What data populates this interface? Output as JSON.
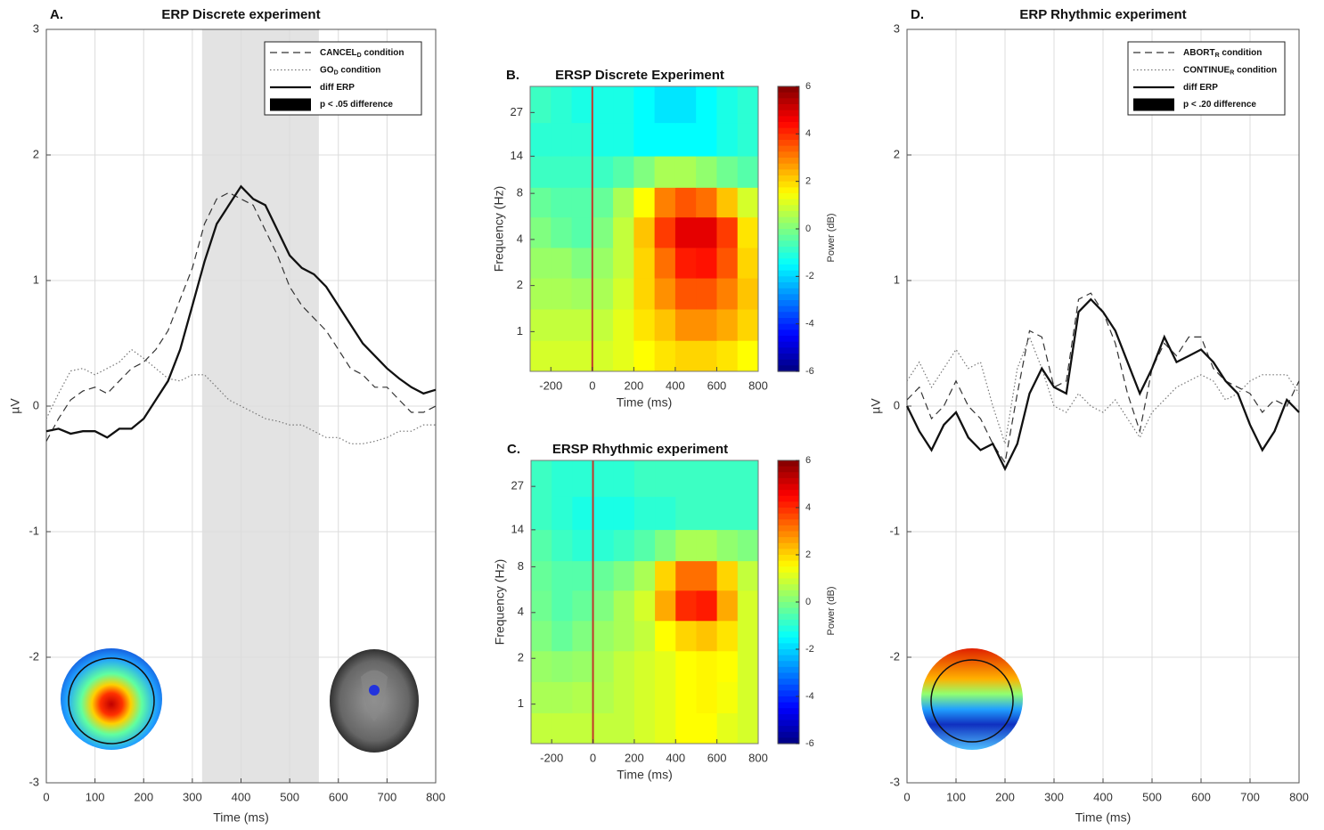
{
  "chart_data": [
    {
      "type": "line",
      "panel": "A.",
      "title": "ERP Discrete experiment",
      "xlabel": "Time (ms)",
      "ylabel": "µV",
      "xlim": [
        0,
        800
      ],
      "xticks": [
        0,
        100,
        200,
        300,
        400,
        500,
        600,
        700,
        800
      ],
      "ylim": [
        -3,
        3
      ],
      "yticks": [
        -3,
        -2,
        -1,
        0,
        1,
        2,
        3
      ],
      "grid": true,
      "legend": "upper right",
      "x": [
        0,
        25,
        50,
        75,
        100,
        125,
        150,
        175,
        200,
        225,
        250,
        275,
        300,
        325,
        350,
        375,
        400,
        425,
        450,
        475,
        500,
        525,
        550,
        575,
        600,
        625,
        650,
        675,
        700,
        725,
        750,
        775,
        800
      ],
      "series": [
        {
          "name": "CANCEL",
          "subscript": "D",
          "suffix": " condition",
          "color": "#333333",
          "dash": "dashed",
          "values": [
            -0.28,
            -0.1,
            0.05,
            0.12,
            0.15,
            0.1,
            0.2,
            0.3,
            0.35,
            0.45,
            0.6,
            0.85,
            1.1,
            1.45,
            1.65,
            1.7,
            1.65,
            1.6,
            1.4,
            1.2,
            0.95,
            0.8,
            0.7,
            0.6,
            0.45,
            0.3,
            0.25,
            0.15,
            0.15,
            0.05,
            -0.05,
            -0.05,
            0.0
          ]
        },
        {
          "name": "GO",
          "subscript": "D",
          "suffix": " condition",
          "color": "#777777",
          "dash": "dotted",
          "values": [
            -0.1,
            0.1,
            0.28,
            0.3,
            0.25,
            0.3,
            0.35,
            0.45,
            0.38,
            0.3,
            0.22,
            0.2,
            0.25,
            0.25,
            0.15,
            0.05,
            0.0,
            -0.05,
            -0.1,
            -0.12,
            -0.15,
            -0.15,
            -0.2,
            -0.25,
            -0.25,
            -0.3,
            -0.3,
            -0.28,
            -0.25,
            -0.2,
            -0.2,
            -0.15,
            -0.15
          ]
        },
        {
          "name": "diff ERP",
          "color": "#111111",
          "dash": "solid",
          "values": [
            -0.2,
            -0.18,
            -0.22,
            -0.2,
            -0.2,
            -0.25,
            -0.18,
            -0.18,
            -0.1,
            0.05,
            0.2,
            0.45,
            0.8,
            1.15,
            1.45,
            1.6,
            1.75,
            1.65,
            1.6,
            1.4,
            1.2,
            1.1,
            1.05,
            0.95,
            0.8,
            0.65,
            0.5,
            0.4,
            0.3,
            0.22,
            0.15,
            0.1,
            0.13
          ]
        }
      ],
      "shaded": {
        "label": "p < .05 difference",
        "range": [
          320,
          560
        ],
        "color": "#e3e3e3"
      }
    },
    {
      "type": "heatmap",
      "panel": "B.",
      "title": "ERSP Discrete Experiment",
      "xlabel": "Time (ms)",
      "ylabel": "Frequency (Hz)",
      "xlim": [
        -300,
        800
      ],
      "xticks": [
        -200,
        0,
        200,
        400,
        600,
        800
      ],
      "ylim": [
        0.55,
        40
      ],
      "yticks": [
        1,
        2,
        4,
        8,
        14,
        27
      ],
      "log_y": true,
      "vline": 0,
      "vline_color": "#c0392b",
      "x": [
        -250,
        -150,
        -50,
        50,
        150,
        250,
        350,
        450,
        550,
        650,
        750
      ],
      "y": [
        0.7,
        1.1,
        1.8,
        2.8,
        4.5,
        7,
        11,
        18,
        30
      ],
      "z": [
        [
          1,
          1,
          1,
          1,
          1.2,
          1.5,
          1.8,
          2,
          2,
          1.8,
          1.5
        ],
        [
          0.8,
          0.8,
          0.8,
          0.8,
          1.2,
          1.8,
          2.2,
          2.8,
          2.8,
          2.5,
          2
        ],
        [
          0.5,
          0.5,
          0.4,
          0.5,
          1,
          2,
          2.8,
          3.5,
          3.5,
          3,
          2.2
        ],
        [
          0.3,
          0.3,
          0,
          0.3,
          0.8,
          2,
          3.2,
          4.2,
          4.3,
          3.5,
          2
        ],
        [
          0,
          -0.3,
          -0.5,
          0,
          0.8,
          2.2,
          3.8,
          4.8,
          4.8,
          3.8,
          1.8
        ],
        [
          -0.3,
          -0.5,
          -0.5,
          -0.3,
          0.5,
          1.5,
          3,
          3.5,
          3.2,
          2.2,
          1
        ],
        [
          -0.8,
          -0.8,
          -0.8,
          -0.8,
          -0.5,
          0,
          0.5,
          0.5,
          0.2,
          -0.2,
          -0.5
        ],
        [
          -1,
          -1,
          -1,
          -1.2,
          -1.2,
          -1.5,
          -1.5,
          -1.5,
          -1.5,
          -1.2,
          -1
        ],
        [
          -0.8,
          -1,
          -1.2,
          -1.2,
          -1.2,
          -1.5,
          -1.8,
          -1.8,
          -1.5,
          -1.2,
          -1
        ]
      ],
      "clim": [
        -6,
        6
      ],
      "cticks": [
        -6,
        -4,
        -2,
        0,
        2,
        4,
        6
      ],
      "clabel": "Power (dB)",
      "colormap": "jet"
    },
    {
      "type": "heatmap",
      "panel": "C.",
      "title": "ERSP Rhythmic experiment",
      "xlabel": "Time (ms)",
      "ylabel": "Frequency (Hz)",
      "xlim": [
        -300,
        800
      ],
      "xticks": [
        -200,
        0,
        200,
        400,
        600,
        800
      ],
      "ylim": [
        0.55,
        40
      ],
      "yticks": [
        1,
        2,
        4,
        8,
        14,
        27
      ],
      "log_y": true,
      "vline": 0,
      "vline_color": "#c0392b",
      "x": [
        -250,
        -150,
        -50,
        50,
        150,
        250,
        350,
        450,
        550,
        650,
        750
      ],
      "y": [
        0.7,
        1.1,
        1.8,
        2.8,
        4.5,
        7,
        11,
        18,
        30
      ],
      "z": [
        [
          0.8,
          0.8,
          0.8,
          0.8,
          0.8,
          1,
          1.2,
          1.5,
          1.5,
          1.2,
          1
        ],
        [
          0.5,
          0.5,
          0.6,
          0.6,
          0.8,
          1,
          1.2,
          1.5,
          1.6,
          1.4,
          1
        ],
        [
          0.3,
          0.2,
          0.3,
          0.5,
          0.8,
          1,
          1.2,
          1.5,
          1.6,
          1.5,
          1
        ],
        [
          0,
          -0.3,
          0,
          0.3,
          0.5,
          0.8,
          1.5,
          2,
          2.2,
          1.8,
          1
        ],
        [
          -0.2,
          -0.5,
          -0.3,
          0,
          0.5,
          1,
          2.5,
          4,
          4.2,
          2.5,
          1
        ],
        [
          -0.3,
          -0.5,
          -0.5,
          -0.3,
          0,
          0.5,
          2,
          3.2,
          3.2,
          2,
          0.8
        ],
        [
          -0.5,
          -0.8,
          -1,
          -1,
          -0.8,
          -0.5,
          0,
          0.5,
          0.5,
          0.2,
          0
        ],
        [
          -0.8,
          -1,
          -1.2,
          -1.2,
          -1.2,
          -1,
          -1,
          -0.8,
          -0.8,
          -0.8,
          -0.8
        ],
        [
          -0.8,
          -1,
          -1,
          -1,
          -1,
          -0.8,
          -0.8,
          -0.8,
          -0.8,
          -0.8,
          -0.8
        ]
      ],
      "clim": [
        -6,
        6
      ],
      "cticks": [
        -6,
        -4,
        -2,
        0,
        2,
        4,
        6
      ],
      "clabel": "Power (dB)",
      "colormap": "jet"
    },
    {
      "type": "line",
      "panel": "D.",
      "title": "ERP Rhythmic experiment",
      "xlabel": "Time (ms)",
      "ylabel": "µV",
      "xlim": [
        0,
        800
      ],
      "xticks": [
        0,
        100,
        200,
        300,
        400,
        500,
        600,
        700,
        800
      ],
      "ylim": [
        -3,
        3
      ],
      "yticks": [
        -3,
        -2,
        -1,
        0,
        1,
        2,
        3
      ],
      "grid": true,
      "legend": "upper right",
      "x": [
        0,
        25,
        50,
        75,
        100,
        125,
        150,
        175,
        200,
        225,
        250,
        275,
        300,
        325,
        350,
        375,
        400,
        425,
        450,
        475,
        500,
        525,
        550,
        575,
        600,
        625,
        650,
        675,
        700,
        725,
        750,
        775,
        800
      ],
      "series": [
        {
          "name": "ABORT",
          "subscript": "R",
          "suffix": " condition",
          "color": "#333333",
          "dash": "dashed",
          "values": [
            0.05,
            0.15,
            -0.1,
            0.0,
            0.2,
            0.0,
            -0.1,
            -0.3,
            -0.45,
            0.1,
            0.6,
            0.55,
            0.15,
            0.2,
            0.85,
            0.9,
            0.75,
            0.5,
            0.1,
            -0.2,
            0.3,
            0.5,
            0.4,
            0.55,
            0.55,
            0.3,
            0.2,
            0.15,
            0.1,
            -0.05,
            0.05,
            0.0,
            0.2
          ]
        },
        {
          "name": "CONTINUE",
          "subscript": "R",
          "suffix": " condition",
          "color": "#777777",
          "dash": "dotted",
          "values": [
            0.2,
            0.35,
            0.15,
            0.3,
            0.45,
            0.3,
            0.35,
            0.0,
            -0.3,
            0.3,
            0.55,
            0.3,
            0.0,
            -0.05,
            0.1,
            0.0,
            -0.05,
            0.05,
            -0.1,
            -0.25,
            -0.05,
            0.05,
            0.15,
            0.2,
            0.25,
            0.2,
            0.05,
            0.1,
            0.2,
            0.25,
            0.25,
            0.25,
            0.1
          ]
        },
        {
          "name": "diff ERP",
          "color": "#111111",
          "dash": "solid",
          "values": [
            0,
            -0.2,
            -0.35,
            -0.15,
            -0.05,
            -0.25,
            -0.35,
            -0.3,
            -0.5,
            -0.3,
            0.1,
            0.3,
            0.15,
            0.1,
            0.75,
            0.85,
            0.75,
            0.6,
            0.35,
            0.1,
            0.3,
            0.55,
            0.35,
            0.4,
            0.45,
            0.35,
            0.2,
            0.1,
            -0.15,
            -0.35,
            -0.2,
            0.05,
            -0.05
          ]
        }
      ],
      "shaded": {
        "label": "p < .20 difference"
      }
    }
  ]
}
